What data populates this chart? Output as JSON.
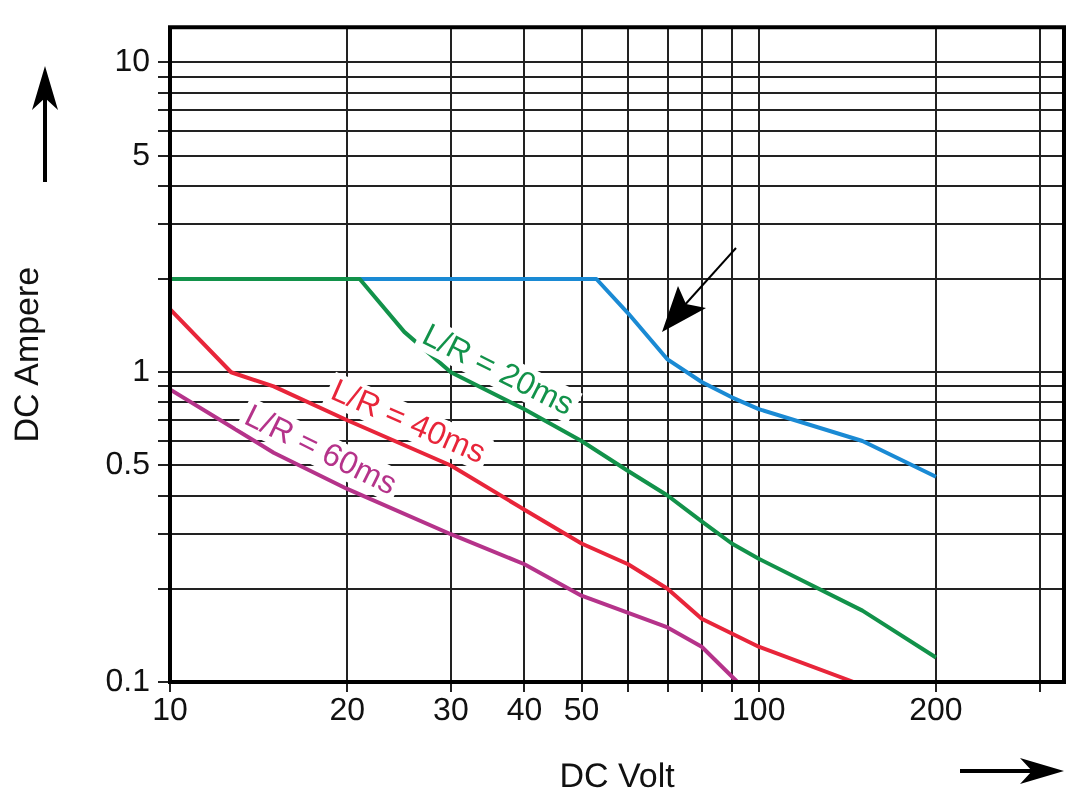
{
  "chart_data": {
    "type": "line",
    "xlabel": "DC Volt",
    "ylabel": "DC Ampere",
    "log": "xy",
    "grid": true,
    "marker": "none",
    "xlim": [
      10,
      330
    ],
    "xticks": [
      10,
      20,
      30,
      40,
      50,
      {
        "value": 60,
        "label": null
      },
      {
        "value": 70,
        "label": null
      },
      {
        "value": 80,
        "label": null
      },
      {
        "value": 90,
        "label": null
      },
      100,
      200,
      {
        "value": 300,
        "label": null
      }
    ],
    "ylim": [
      0.1,
      13
    ],
    "yticks": [
      0.1,
      {
        "value": 0.2,
        "label": null
      },
      {
        "value": 0.3,
        "label": null
      },
      {
        "value": 0.4,
        "label": null
      },
      0.5,
      {
        "value": 0.6,
        "label": null
      },
      {
        "value": 0.7,
        "label": null
      },
      {
        "value": 0.8,
        "label": null
      },
      {
        "value": 0.9,
        "label": null
      },
      1,
      {
        "value": 2,
        "label": null
      },
      {
        "value": 3,
        "label": null
      },
      {
        "value": 4,
        "label": null
      },
      5,
      {
        "value": 6,
        "label": null
      },
      {
        "value": 7,
        "label": null
      },
      {
        "value": 8,
        "label": null
      },
      {
        "value": 9,
        "label": null
      },
      10
    ],
    "series": [
      {
        "color": "#1a8ad4",
        "x": [
          21,
          53,
          60,
          70,
          80,
          90,
          100,
          150,
          200
        ],
        "values": [
          2,
          2,
          1.55,
          1.1,
          0.93,
          0.83,
          0.76,
          0.6,
          0.46
        ]
      },
      {
        "name": "L/R = 20ms",
        "color": "#12924a",
        "x": [
          10,
          21,
          25,
          30,
          40,
          50,
          60,
          70,
          80,
          90,
          100,
          150,
          200
        ],
        "values": [
          2,
          2,
          1.35,
          1.0,
          0.76,
          0.6,
          0.48,
          0.4,
          0.33,
          0.28,
          0.25,
          0.17,
          0.12
        ]
      },
      {
        "name": "L/R = 40ms",
        "color": "#e8253a",
        "x": [
          10,
          12.7,
          15,
          20,
          30,
          40,
          50,
          60,
          70,
          80,
          100,
          145
        ],
        "values": [
          1.6,
          1.0,
          0.9,
          0.7,
          0.5,
          0.36,
          0.28,
          0.24,
          0.2,
          0.16,
          0.13,
          0.1
        ]
      },
      {
        "name": "L/R = 60ms",
        "color": "#b5338a",
        "x": [
          10,
          15,
          20,
          30,
          40,
          50,
          70,
          80,
          92
        ],
        "values": [
          0.88,
          0.55,
          0.42,
          0.3,
          0.24,
          0.19,
          0.15,
          0.13,
          0.1
        ]
      }
    ]
  }
}
